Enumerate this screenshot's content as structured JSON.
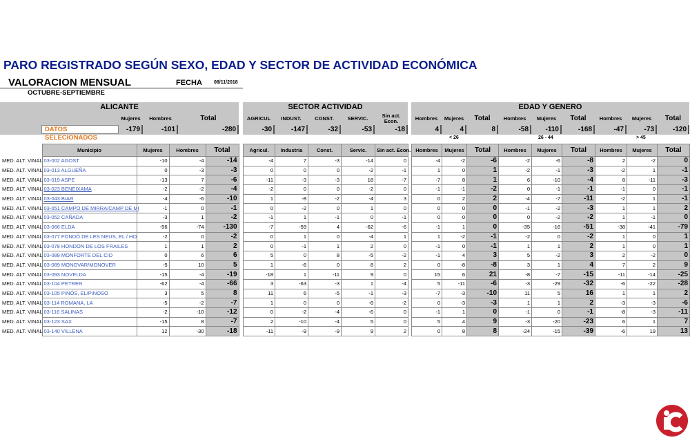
{
  "title": "PARO REGISTRADO SEGÚN SEXO, EDAD Y SECTOR DE ACTIVIDAD ECONÓMICA",
  "valoracion": "VALORACION MENSUAL",
  "fecha_label": "FECHA",
  "fecha": "08/11/2018",
  "periodo": "OCTUBRE-SEPTIEMBRE",
  "summary": {
    "alicante": "ALICANTE",
    "sector": "SECTOR ACTIVIDAD",
    "edad": "EDAD Y GENERO",
    "alicante_cols": [
      "Mujeres",
      "Hombres",
      "Total"
    ],
    "sector_cols": [
      "AGRICUL",
      "INDUST.",
      "CONST.",
      "SERVIC.",
      "Sin act. Econ."
    ],
    "edad_cols": [
      "Hombres",
      "Mujeres",
      "Total",
      "Hombres",
      "Mujeres",
      "Total",
      "Hombres",
      "Mujeres",
      "Total"
    ],
    "datos_label": "DATOS SELECIONADOS",
    "values": [
      "-179",
      "-101",
      "-280",
      "-30",
      "-147",
      "-32",
      "-53",
      "-18",
      "4",
      "4",
      "8",
      "-58",
      "-110",
      "-168",
      "-47",
      "-73",
      "-120"
    ]
  },
  "age_groups": [
    "< 26",
    "26 - 44",
    "> 45"
  ],
  "table": {
    "left_headers": [
      "Municipio",
      "Mujeres",
      "Hombres",
      "Total"
    ],
    "sector_headers": [
      "Agricul.",
      "Industria",
      "Const.",
      "Servic.",
      "Sin act. Econ."
    ],
    "edad_headers": [
      "Hombres",
      "Mujeres",
      "Total",
      "Hombres",
      "Mujeres",
      "Total",
      "Hombres",
      "Mujeres",
      "Total"
    ],
    "rows": [
      {
        "label": "MED. ALT. VINAL",
        "municipio": "03-002 AGOST",
        "v": [
          "-10",
          "-4",
          "-14",
          "-4",
          "7",
          "-3",
          "-14",
          "0",
          "-4",
          "-2",
          "-6",
          "-2",
          "-6",
          "-8",
          "2",
          "-2",
          "0"
        ]
      },
      {
        "label": "MED. ALT. VINAL",
        "municipio": "03-013 ALGUEÑA",
        "v": [
          "0",
          "-3",
          "-3",
          "0",
          "0",
          "0",
          "-2",
          "-1",
          "1",
          "0",
          "1",
          "-2",
          "-1",
          "-3",
          "-2",
          "1",
          "-1"
        ]
      },
      {
        "label": "MED. ALT. VINAL",
        "municipio": "03-019 ASPE",
        "v": [
          "-13",
          "7",
          "-6",
          "-11",
          "-3",
          "-3",
          "18",
          "-7",
          "-7",
          "8",
          "1",
          "6",
          "-10",
          "-4",
          "8",
          "-11",
          "-3"
        ]
      },
      {
        "label": "MED. ALT. VINAL",
        "municipio": "03-023 BENEIXAMA",
        "v": [
          "-2",
          "-2",
          "-4",
          "-2",
          "0",
          "0",
          "-2",
          "0",
          "-1",
          "-1",
          "-2",
          "0",
          "-1",
          "-1",
          "-1",
          "0",
          "-1"
        ]
      },
      {
        "label": "MED. ALT. VINAL",
        "municipio": "03-043 BIAR",
        "v": [
          "-4",
          "-6",
          "-10",
          "1",
          "-8",
          "-2",
          "-4",
          "3",
          "0",
          "2",
          "2",
          "-4",
          "-7",
          "-11",
          "-2",
          "1",
          "-1"
        ]
      },
      {
        "label": "MED. ALT. VINAL",
        "municipio": "03-051 CAMPO DE MIRRA/CAMP DE MI",
        "v": [
          "-1",
          "0",
          "-1",
          "0",
          "-2",
          "0",
          "1",
          "0",
          "0",
          "0",
          "0",
          "-1",
          "-2",
          "-3",
          "1",
          "1",
          "2"
        ]
      },
      {
        "label": "MED. ALT. VINAL",
        "municipio": "03-052 CAÑADA",
        "v": [
          "-3",
          "1",
          "-2",
          "-1",
          "1",
          "-1",
          "0",
          "-1",
          "0",
          "0",
          "0",
          "0",
          "-2",
          "-2",
          "1",
          "-1",
          "0"
        ]
      },
      {
        "label": "MED. ALT. VINAL",
        "municipio": "03-066 ELDA",
        "v": [
          "-56",
          "-74",
          "-130",
          "-7",
          "-59",
          "4",
          "-62",
          "-6",
          "-1",
          "1",
          "0",
          "-35",
          "-16",
          "-51",
          "-38",
          "-41",
          "-79"
        ]
      },
      {
        "label": "MED. ALT. VINAL",
        "municipio": "03-077 FONDÓ DE LES NEUS, EL / HO",
        "v": [
          "-2",
          "0",
          "-2",
          "0",
          "1",
          "0",
          "-4",
          "1",
          "1",
          "-2",
          "-1",
          "-2",
          "0",
          "-2",
          "1",
          "0",
          "1"
        ]
      },
      {
        "label": "MED. ALT. VINAL",
        "municipio": "03-078 HONDON DE LOS FRAILES",
        "v": [
          "1",
          "1",
          "2",
          "0",
          "-1",
          "1",
          "2",
          "0",
          "-1",
          "0",
          "-1",
          "1",
          "1",
          "2",
          "1",
          "0",
          "1"
        ]
      },
      {
        "label": "MED. ALT. VINAL",
        "municipio": "03-088 MONFORTE DEL CID",
        "v": [
          "0",
          "6",
          "6",
          "5",
          "0",
          "8",
          "-5",
          "-2",
          "-1",
          "4",
          "3",
          "5",
          "-2",
          "3",
          "2",
          "-2",
          "0"
        ]
      },
      {
        "label": "MED. ALT. VINAL",
        "municipio": "03-089 MONOVAR/MONOVER",
        "v": [
          "-5",
          "10",
          "5",
          "1",
          "-6",
          "0",
          "8",
          "2",
          "0",
          "-8",
          "-8",
          "3",
          "1",
          "4",
          "7",
          "2",
          "9"
        ]
      },
      {
        "label": "MED. ALT. VINAL",
        "municipio": "03-093 NOVELDA",
        "v": [
          "-15",
          "-4",
          "-19",
          "-18",
          "1",
          "-11",
          "9",
          "0",
          "15",
          "6",
          "21",
          "-8",
          "-7",
          "-15",
          "-11",
          "-14",
          "-25"
        ]
      },
      {
        "label": "MED. ALT. VINAL",
        "municipio": "03-104 PETRER",
        "v": [
          "-62",
          "-4",
          "-66",
          "3",
          "-63",
          "-3",
          "1",
          "-4",
          "5",
          "-11",
          "-6",
          "-3",
          "-29",
          "-32",
          "-6",
          "-22",
          "-28"
        ]
      },
      {
        "label": "MED. ALT. VINAL",
        "municipio": "03-105 PINÓS, EL/PINOSO",
        "v": [
          "3",
          "5",
          "8",
          "11",
          "6",
          "-5",
          "-1",
          "-3",
          "-7",
          "-3",
          "-10",
          "11",
          "5",
          "16",
          "1",
          "1",
          "2"
        ]
      },
      {
        "label": "MED. ALT. VINAL",
        "municipio": "03-114 ROMANA, LA",
        "v": [
          "-5",
          "-2",
          "-7",
          "1",
          "0",
          "0",
          "-6",
          "-2",
          "0",
          "-3",
          "-3",
          "1",
          "1",
          "2",
          "-3",
          "-3",
          "-6"
        ]
      },
      {
        "label": "MED. ALT. VINAL",
        "municipio": "03-116 SALINAS",
        "v": [
          "-2",
          "-10",
          "-12",
          "0",
          "-2",
          "-4",
          "-6",
          "0",
          "-1",
          "1",
          "0",
          "-1",
          "0",
          "-1",
          "-8",
          "-3",
          "-11"
        ]
      },
      {
        "label": "MED. ALT. VINAL",
        "municipio": "03-123 SAX",
        "v": [
          "-15",
          "8",
          "-7",
          "2",
          "-10",
          "-4",
          "5",
          "0",
          "5",
          "4",
          "9",
          "-3",
          "-20",
          "-23",
          "6",
          "1",
          "7"
        ]
      },
      {
        "label": "MED. ALT. VINAL",
        "municipio": "03-140 VILLENA",
        "v": [
          "12",
          "-30",
          "-18",
          "-11",
          "-9",
          "-9",
          "9",
          "2",
          "0",
          "8",
          "8",
          "-24",
          "-15",
          "-39",
          "-6",
          "19",
          "13"
        ]
      }
    ]
  },
  "logo": {
    "text": "ic",
    "color": "#c8202c"
  }
}
